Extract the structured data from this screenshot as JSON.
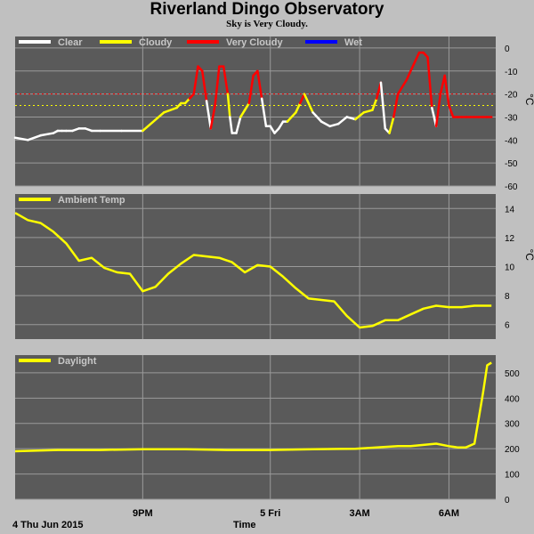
{
  "title": "Riverland Dingo Observatory",
  "subtitle": "Sky is Very Cloudy.",
  "date_label": "4 Thu Jun 2015",
  "time_label": "Time",
  "colors": {
    "background": "#c0c0c0",
    "plot_bg": "#5a5a5a",
    "grid": "#9a9a9a",
    "clear": "#ffffff",
    "cloudy": "#ffff00",
    "very_cloudy": "#ff0000",
    "wet": "#0000ff"
  },
  "chart_data": [
    {
      "type": "line",
      "name": "sky",
      "ylabel": "°C",
      "ylim": [
        -60,
        5
      ],
      "yticks": [
        0,
        -10,
        -20,
        -30,
        -40,
        -50,
        -60
      ],
      "thresholds": [
        -20,
        -25
      ],
      "legend": [
        {
          "label": "Clear",
          "color": "#ffffff"
        },
        {
          "label": "Cloudy",
          "color": "#ffff00"
        },
        {
          "label": "Very Cloudy",
          "color": "#ff0000"
        },
        {
          "label": "Wet",
          "color": "#0000ff"
        }
      ],
      "x": [
        0,
        0.3,
        0.6,
        0.9,
        1.0,
        1.1,
        1.2,
        1.35,
        1.5,
        1.65,
        1.8,
        2.0,
        2.5,
        3.0,
        3.5,
        3.8,
        3.9,
        4.0,
        4.1,
        4.2,
        4.3,
        4.4,
        4.5,
        4.6,
        4.7,
        4.8,
        4.9,
        5.0,
        5.05,
        5.1,
        5.2,
        5.3,
        5.4,
        5.5,
        5.6,
        5.7,
        5.8,
        5.9,
        6.0,
        6.1,
        6.2,
        6.3,
        6.4,
        6.5,
        6.6,
        6.7,
        6.8,
        7.0,
        7.2,
        7.4,
        7.6,
        7.8,
        8.0,
        8.2,
        8.4,
        8.5,
        8.6,
        8.7,
        8.8,
        8.9,
        9.0,
        9.2,
        9.4,
        9.5,
        9.6,
        9.7,
        9.8,
        9.9,
        10.0,
        10.1,
        10.2,
        10.3,
        10.4,
        10.5,
        10.6,
        10.7,
        10.8,
        10.9,
        11.0,
        11.1,
        11.2
      ],
      "y": [
        -39,
        -40,
        -38,
        -37,
        -36,
        -36,
        -36,
        -36,
        -35,
        -35,
        -36,
        -36,
        -36,
        -36,
        -28,
        -26,
        -24,
        -24,
        -22,
        -20,
        -8,
        -10,
        -23,
        -35,
        -25,
        -8,
        -8,
        -20,
        -30,
        -37,
        -37,
        -30,
        -27,
        -24,
        -12,
        -10,
        -22,
        -34,
        -34,
        -37,
        -35,
        -32,
        -32,
        -30,
        -28,
        -24,
        -20,
        -28,
        -32,
        -34,
        -33,
        -30,
        -31,
        -28,
        -27,
        -22,
        -15,
        -35,
        -37,
        -30,
        -20,
        -14,
        -6,
        -2,
        -2,
        -4,
        -26,
        -34,
        -20,
        -12,
        -25,
        -30,
        -30,
        -30,
        -30,
        -30,
        -30,
        -30,
        -30,
        -30,
        -30
      ],
      "status": [
        "clear",
        "clear",
        "clear",
        "clear",
        "clear",
        "clear",
        "clear",
        "clear",
        "clear",
        "clear",
        "clear",
        "clear",
        "clear",
        "clear",
        "cloudy",
        "cloudy",
        "cloudy",
        "cloudy",
        "cloudy",
        "very_cloudy",
        "very_cloudy",
        "very_cloudy",
        "very_cloudy",
        "clear",
        "very_cloudy",
        "very_cloudy",
        "very_cloudy",
        "very_cloudy",
        "cloudy",
        "clear",
        "clear",
        "clear",
        "cloudy",
        "cloudy",
        "very_cloudy",
        "very_cloudy",
        "very_cloudy",
        "clear",
        "clear",
        "clear",
        "clear",
        "clear",
        "clear",
        "cloudy",
        "cloudy",
        "cloudy",
        "very_cloudy",
        "cloudy",
        "clear",
        "clear",
        "clear",
        "clear",
        "clear",
        "cloudy",
        "cloudy",
        "cloudy",
        "very_cloudy",
        "clear",
        "clear",
        "cloudy",
        "very_cloudy",
        "very_cloudy",
        "very_cloudy",
        "very_cloudy",
        "very_cloudy",
        "very_cloudy",
        "very_cloudy",
        "clear",
        "very_cloudy",
        "very_cloudy",
        "very_cloudy",
        "very_cloudy",
        "very_cloudy",
        "very_cloudy",
        "very_cloudy",
        "very_cloudy",
        "very_cloudy",
        "very_cloudy",
        "very_cloudy",
        "very_cloudy",
        "very_cloudy"
      ]
    },
    {
      "type": "line",
      "name": "ambient",
      "legend": [
        {
          "label": "Ambient Temp",
          "color": "#ffff00"
        }
      ],
      "ylabel": "°C",
      "ylim": [
        5,
        15
      ],
      "yticks": [
        6,
        8,
        10,
        12,
        14
      ],
      "color": "#ffff00",
      "x": [
        0,
        0.3,
        0.6,
        0.9,
        1.2,
        1.5,
        1.8,
        2.1,
        2.4,
        2.7,
        3.0,
        3.3,
        3.6,
        3.9,
        4.2,
        4.5,
        4.8,
        5.1,
        5.4,
        5.7,
        6.0,
        6.3,
        6.6,
        6.9,
        7.2,
        7.5,
        7.8,
        8.1,
        8.4,
        8.7,
        9.0,
        9.3,
        9.6,
        9.9,
        10.2,
        10.5,
        10.8,
        11.2
      ],
      "y": [
        13.7,
        13.2,
        13.0,
        12.4,
        11.6,
        10.4,
        10.6,
        9.9,
        9.6,
        9.5,
        8.3,
        8.6,
        9.5,
        10.2,
        10.8,
        10.7,
        10.6,
        10.3,
        9.6,
        10.1,
        10.0,
        9.3,
        8.5,
        7.8,
        7.7,
        7.6,
        6.6,
        5.8,
        5.9,
        6.3,
        6.3,
        6.7,
        7.1,
        7.3,
        7.2,
        7.2,
        7.3,
        7.3
      ]
    },
    {
      "type": "line",
      "name": "daylight",
      "legend": [
        {
          "label": "Daylight",
          "color": "#ffff00"
        }
      ],
      "ylim": [
        0,
        570
      ],
      "yticks": [
        0,
        100,
        200,
        300,
        400,
        500
      ],
      "color": "#ffff00",
      "x": [
        0,
        1,
        2,
        3,
        4,
        5,
        6,
        7,
        8,
        8.5,
        9,
        9.3,
        9.6,
        9.9,
        10.2,
        10.4,
        10.6,
        10.8,
        10.9,
        11.0,
        11.1,
        11.2
      ],
      "y": [
        190,
        195,
        195,
        198,
        198,
        195,
        195,
        198,
        200,
        205,
        210,
        210,
        215,
        220,
        210,
        205,
        205,
        220,
        320,
        420,
        530,
        540
      ]
    }
  ],
  "xaxis": {
    "ticks": [
      {
        "x": 3.0,
        "label": "9PM"
      },
      {
        "x": 6.0,
        "label": "5 Fri"
      },
      {
        "x": 8.1,
        "label": "3AM"
      },
      {
        "x": 10.2,
        "label": "6AM"
      }
    ],
    "range": [
      0,
      11.3
    ]
  }
}
